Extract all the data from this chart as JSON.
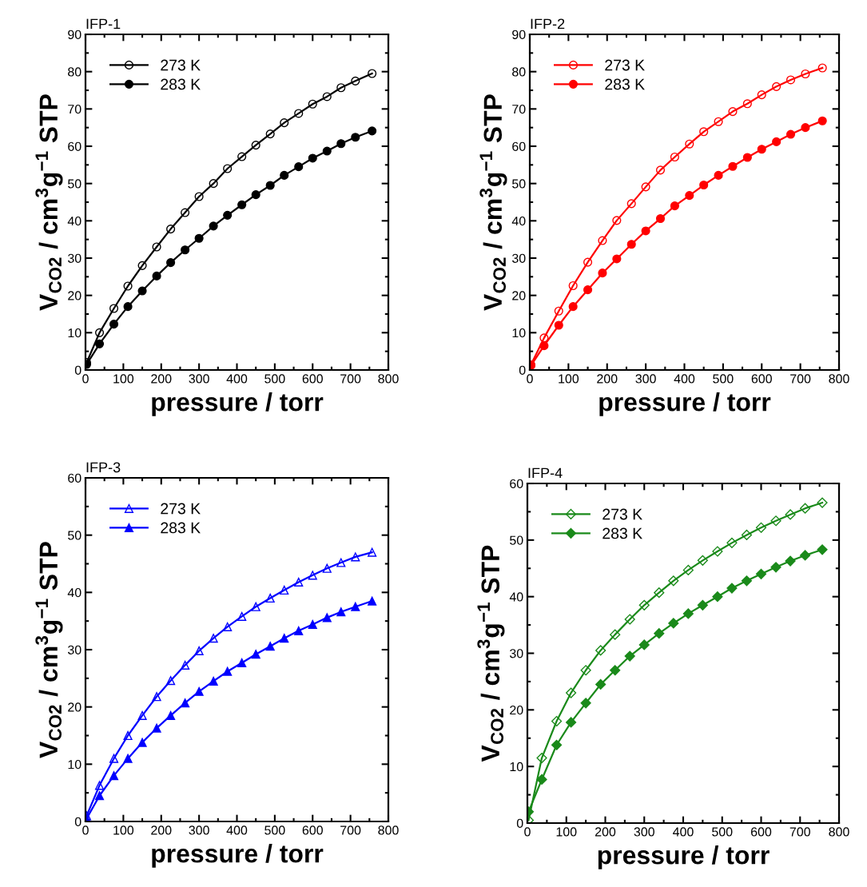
{
  "chart_data": [
    {
      "type": "line",
      "title": "IFP-1",
      "xlabel": "pressure / torr",
      "ylabel": "V$_{CO2}$ / cm$^{3}$g$^{−1}$ STP",
      "xlim": [
        0,
        800
      ],
      "ylim": [
        0,
        90
      ],
      "xticks": [
        0,
        100,
        200,
        300,
        400,
        500,
        600,
        700,
        800
      ],
      "yticks": [
        0,
        10,
        20,
        30,
        40,
        50,
        60,
        70,
        80,
        90
      ],
      "grid": false,
      "legend": "top left",
      "marker": "circle",
      "line_style": "solid",
      "x": [
        3,
        37,
        75,
        112,
        150,
        188,
        225,
        263,
        300,
        338,
        375,
        413,
        450,
        488,
        525,
        563,
        600,
        638,
        675,
        713,
        757
      ],
      "series": [
        {
          "name": "273 K",
          "color": "#000000",
          "values": [
            2,
            10,
            16.5,
            22.5,
            28,
            33,
            37.8,
            42.2,
            46.5,
            50,
            54,
            57.2,
            60.3,
            63.3,
            66.3,
            68.8,
            71.3,
            73.3,
            75.7,
            77.5,
            79.5
          ]
        },
        {
          "name": "283 K",
          "color": "#000000",
          "values": [
            1.5,
            7,
            12.3,
            17,
            21.2,
            25.2,
            28.8,
            32.2,
            35.3,
            38.6,
            41.5,
            44.3,
            47,
            49.5,
            52.2,
            54.5,
            56.8,
            58.7,
            60.7,
            62.4,
            64.1
          ]
        }
      ]
    },
    {
      "type": "line",
      "title": "IFP-2",
      "xlabel": "pressure / torr",
      "ylabel": "V$_{CO2}$ / cm$^{3}$g$^{−1}$ STP",
      "xlim": [
        0,
        800
      ],
      "ylim": [
        0,
        90
      ],
      "xticks": [
        0,
        100,
        200,
        300,
        400,
        500,
        600,
        700,
        800
      ],
      "yticks": [
        0,
        10,
        20,
        30,
        40,
        50,
        60,
        70,
        80,
        90
      ],
      "grid": false,
      "legend": "top left",
      "marker": "circle",
      "line_style": "solid",
      "x": [
        3,
        37,
        75,
        112,
        150,
        188,
        225,
        263,
        300,
        338,
        375,
        413,
        450,
        488,
        525,
        563,
        600,
        638,
        675,
        713,
        757
      ],
      "series": [
        {
          "name": "273 K",
          "color": "#ff0000",
          "values": [
            1.4,
            8.6,
            15.8,
            22.6,
            28.9,
            34.7,
            40.1,
            44.6,
            49.1,
            53.6,
            57.1,
            60.6,
            63.9,
            66.6,
            69.3,
            71.4,
            73.8,
            76,
            77.8,
            79.4,
            81
          ]
        },
        {
          "name": "283 K",
          "color": "#ff0000",
          "values": [
            1.2,
            6.5,
            12,
            17,
            21.5,
            26,
            29.8,
            33.7,
            37.3,
            40.6,
            44,
            46.8,
            49.6,
            52.2,
            54.6,
            57,
            59.2,
            61.2,
            63.2,
            65,
            66.8
          ]
        }
      ]
    },
    {
      "type": "line",
      "title": "IFP-3",
      "xlabel": "pressure / torr",
      "ylabel": "V$_{CO2}$ / cm$^{3}$g$^{−1}$ STP",
      "xlim": [
        0,
        800
      ],
      "ylim": [
        0,
        60
      ],
      "xticks": [
        0,
        100,
        200,
        300,
        400,
        500,
        600,
        700,
        800
      ],
      "yticks": [
        0,
        10,
        20,
        30,
        40,
        50,
        60
      ],
      "grid": false,
      "legend": "top left",
      "marker": "triangle",
      "line_style": "solid",
      "x": [
        3,
        37,
        75,
        112,
        150,
        188,
        225,
        263,
        300,
        338,
        375,
        413,
        450,
        488,
        525,
        563,
        600,
        638,
        675,
        713,
        757
      ],
      "series": [
        {
          "name": "273 K",
          "color": "#0000ff",
          "values": [
            1,
            6.3,
            11,
            15,
            18.5,
            21.8,
            24.6,
            27.3,
            29.8,
            32,
            34,
            35.8,
            37.5,
            39,
            40.4,
            41.8,
            43,
            44.2,
            45.2,
            46.2,
            47
          ]
        },
        {
          "name": "283 K",
          "color": "#0000ff",
          "values": [
            0.5,
            4.5,
            8,
            11,
            13.8,
            16.3,
            18.5,
            20.7,
            22.7,
            24.5,
            26.2,
            27.7,
            29.2,
            30.6,
            32,
            33.3,
            34.4,
            35.6,
            36.6,
            37.5,
            38.5
          ]
        }
      ]
    },
    {
      "type": "line",
      "title": "IFP-4",
      "xlabel": "pressure / torr",
      "ylabel": "V$_{CO2}$ / cm$^{3}$g$^{−1}$ STP",
      "xlim": [
        0,
        800
      ],
      "ylim": [
        0,
        60
      ],
      "xticks": [
        0,
        100,
        200,
        300,
        400,
        500,
        600,
        700,
        800
      ],
      "yticks": [
        0,
        10,
        20,
        30,
        40,
        50,
        60
      ],
      "grid": false,
      "legend": "top left",
      "marker": "diamond",
      "line_style": "solid",
      "x": [
        3,
        37,
        75,
        112,
        150,
        188,
        225,
        263,
        300,
        338,
        375,
        413,
        450,
        488,
        525,
        563,
        600,
        638,
        675,
        713,
        757
      ],
      "series": [
        {
          "name": "273 K",
          "color": "#1a8a1a",
          "values": [
            0.5,
            11.5,
            18,
            23,
            27,
            30.5,
            33.3,
            36,
            38.5,
            40.7,
            42.8,
            44.7,
            46.4,
            48,
            49.5,
            50.9,
            52.2,
            53.4,
            54.5,
            55.6,
            56.6
          ]
        },
        {
          "name": "283 K",
          "color": "#1a8a1a",
          "values": [
            2,
            7.7,
            13.8,
            17.8,
            21.2,
            24.5,
            27,
            29.5,
            31.5,
            33.5,
            35.3,
            37,
            38.5,
            40,
            41.5,
            42.8,
            44,
            45.2,
            46.3,
            47.3,
            48.3
          ]
        }
      ]
    }
  ]
}
